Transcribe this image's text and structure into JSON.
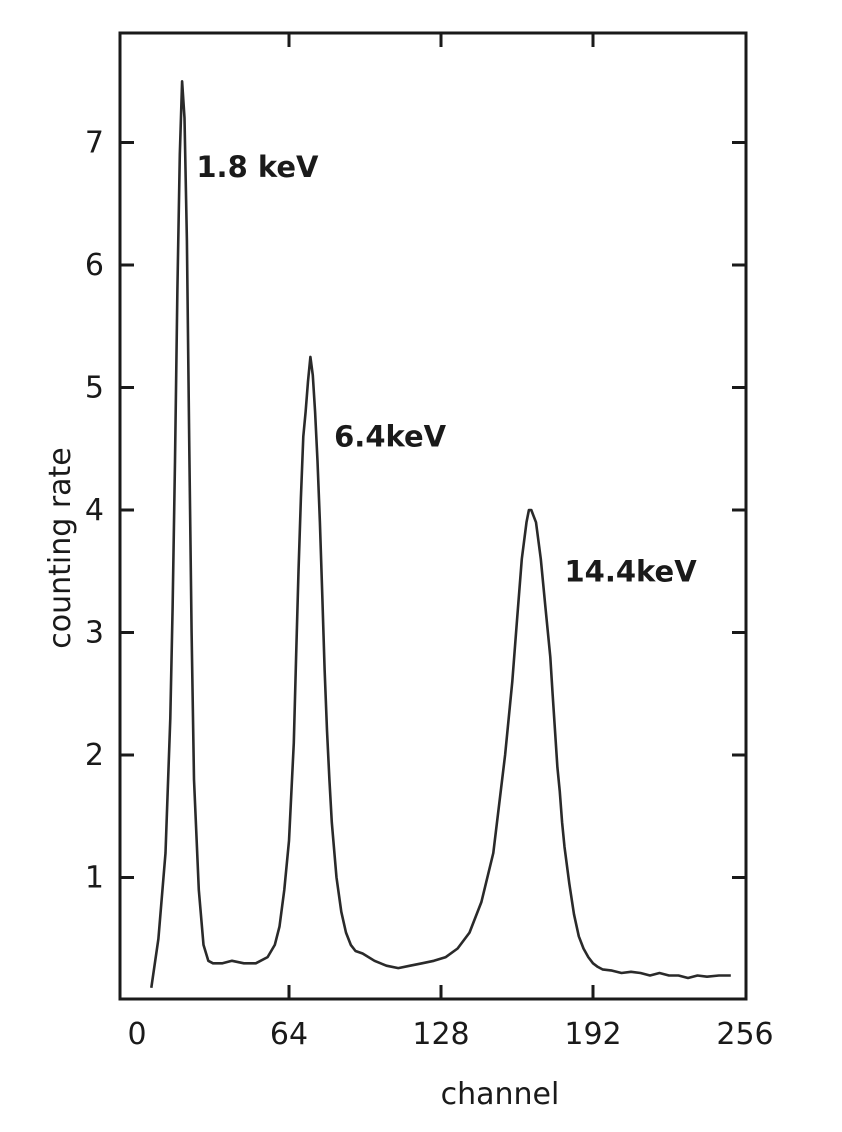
{
  "chart_data": {
    "type": "line",
    "title": "",
    "xlabel": "channel",
    "ylabel": "counting rate",
    "xlim": [
      0,
      256
    ],
    "ylim": [
      0,
      8
    ],
    "x_ticks": [
      0,
      64,
      128,
      192,
      256
    ],
    "y_ticks": [
      1,
      2,
      3,
      4,
      5,
      6,
      7
    ],
    "grid": false,
    "legend": "none",
    "series": [
      {
        "x": [
          6,
          9,
          12,
          14,
          15,
          16,
          17,
          18,
          19,
          20,
          21,
          22,
          23,
          24,
          26,
          28,
          30,
          32,
          36,
          40,
          45,
          50,
          55,
          58,
          60,
          62,
          64,
          66,
          67,
          68,
          69,
          70,
          71,
          72,
          73,
          74,
          75,
          76,
          77,
          78,
          79,
          80,
          81,
          82,
          84,
          86,
          88,
          90,
          92,
          95,
          100,
          105,
          110,
          115,
          120,
          125,
          130,
          135,
          140,
          145,
          150,
          155,
          158,
          160,
          162,
          164,
          165,
          166,
          167,
          168,
          170,
          172,
          174,
          175,
          176,
          177,
          178,
          179,
          180,
          182,
          184,
          186,
          188,
          190,
          192,
          194,
          196,
          200,
          204,
          208,
          212,
          216,
          220,
          224,
          228,
          232,
          236,
          240,
          245,
          250
        ],
        "values": [
          0.1,
          0.5,
          1.2,
          2.3,
          3.2,
          4.4,
          5.8,
          6.9,
          7.5,
          7.2,
          6.2,
          4.5,
          3.0,
          1.8,
          0.9,
          0.45,
          0.32,
          0.3,
          0.3,
          0.32,
          0.3,
          0.3,
          0.35,
          0.45,
          0.6,
          0.9,
          1.3,
          2.1,
          2.8,
          3.5,
          4.1,
          4.6,
          4.8,
          5.05,
          5.25,
          5.1,
          4.8,
          4.4,
          3.9,
          3.3,
          2.7,
          2.2,
          1.8,
          1.45,
          1.0,
          0.72,
          0.55,
          0.45,
          0.4,
          0.38,
          0.32,
          0.28,
          0.26,
          0.28,
          0.3,
          0.32,
          0.35,
          0.42,
          0.55,
          0.8,
          1.2,
          2.0,
          2.6,
          3.1,
          3.6,
          3.9,
          4.0,
          4.0,
          3.95,
          3.9,
          3.6,
          3.2,
          2.8,
          2.5,
          2.2,
          1.9,
          1.7,
          1.45,
          1.25,
          0.95,
          0.7,
          0.52,
          0.42,
          0.35,
          0.3,
          0.27,
          0.25,
          0.24,
          0.22,
          0.23,
          0.22,
          0.2,
          0.22,
          0.2,
          0.2,
          0.18,
          0.2,
          0.19,
          0.2,
          0.2
        ]
      }
    ],
    "annotations": [
      {
        "text": "1.8 keV",
        "x": 25,
        "y": 6.8
      },
      {
        "text": "6.4keV",
        "x": 83,
        "y": 4.6
      },
      {
        "text": "14.4keV",
        "x": 180,
        "y": 3.5
      }
    ]
  }
}
